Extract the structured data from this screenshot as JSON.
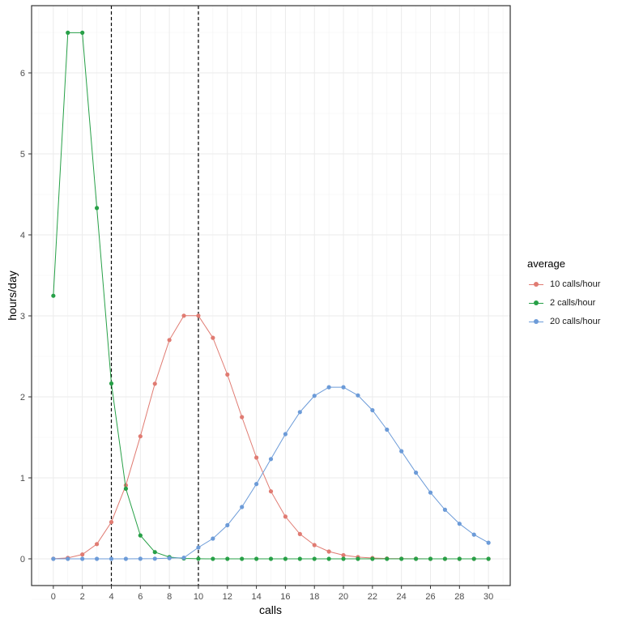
{
  "chart_data": {
    "type": "line",
    "title": "",
    "xlabel": "calls",
    "ylabel": "hours/day",
    "xlim": [
      -1.5,
      31.5
    ],
    "ylim": [
      -0.33,
      6.83
    ],
    "x_ticks": [
      0,
      2,
      4,
      6,
      8,
      10,
      12,
      14,
      16,
      18,
      20,
      22,
      24,
      26,
      28,
      30
    ],
    "y_ticks": [
      0,
      1,
      2,
      3,
      4,
      5,
      6
    ],
    "grid": true,
    "vlines": [
      {
        "x": 4,
        "style": "dashed",
        "color": "#000000"
      },
      {
        "x": 10,
        "style": "dashed",
        "color": "#000000"
      }
    ],
    "legend": {
      "title": "average",
      "position": "right"
    },
    "x": [
      0,
      1,
      2,
      3,
      4,
      5,
      6,
      7,
      8,
      9,
      10,
      11,
      12,
      13,
      14,
      15,
      16,
      17,
      18,
      19,
      20,
      21,
      22,
      23,
      24,
      25,
      26,
      27,
      28,
      29,
      30
    ],
    "series": [
      {
        "name": "10 calls/hour",
        "color": "#E07B72",
        "values": [
          0.001,
          0.011,
          0.054,
          0.182,
          0.454,
          0.908,
          1.513,
          2.162,
          2.702,
          3.002,
          3.002,
          2.729,
          2.275,
          1.75,
          1.25,
          0.833,
          0.521,
          0.306,
          0.17,
          0.09,
          0.045,
          0.021,
          0.01,
          0.004,
          0.002,
          0.001,
          0.0,
          0.0,
          0.0,
          0.0,
          0.0
        ]
      },
      {
        "name": "2 calls/hour",
        "color": "#27A047",
        "values": [
          3.248,
          6.496,
          6.496,
          4.331,
          2.165,
          0.866,
          0.289,
          0.083,
          0.021,
          0.005,
          0.001,
          0.0,
          0.0,
          0.0,
          0.0,
          0.0,
          0.0,
          0.0,
          0.0,
          0.0,
          0.0,
          0.0,
          0.0,
          0.0,
          0.0,
          0.0,
          0.0,
          0.0,
          0.0,
          0.0,
          0.0
        ]
      },
      {
        "name": "20 calls/hour",
        "color": "#6C9BD8",
        "values": [
          0.0,
          0.0,
          0.0,
          0.0,
          0.0,
          0.0,
          0.001,
          0.002,
          0.009,
          0.014,
          0.14,
          0.25,
          0.415,
          0.64,
          0.924,
          1.232,
          1.54,
          1.812,
          2.013,
          2.119,
          2.119,
          2.018,
          1.835,
          1.595,
          1.329,
          1.064,
          0.818,
          0.606,
          0.433,
          0.299,
          0.199
        ]
      }
    ]
  },
  "axes": {
    "xlabel": "calls",
    "ylabel": "hours/day",
    "x_tick_labels": [
      "0",
      "2",
      "4",
      "6",
      "8",
      "10",
      "12",
      "14",
      "16",
      "18",
      "20",
      "22",
      "24",
      "26",
      "28",
      "30"
    ],
    "y_tick_labels": [
      "0",
      "1",
      "2",
      "3",
      "4",
      "5",
      "6"
    ]
  },
  "legend": {
    "title": "average",
    "items": [
      {
        "label": "10 calls/hour",
        "color": "#E07B72"
      },
      {
        "label": "2 calls/hour",
        "color": "#27A047"
      },
      {
        "label": "20 calls/hour",
        "color": "#6C9BD8"
      }
    ]
  }
}
